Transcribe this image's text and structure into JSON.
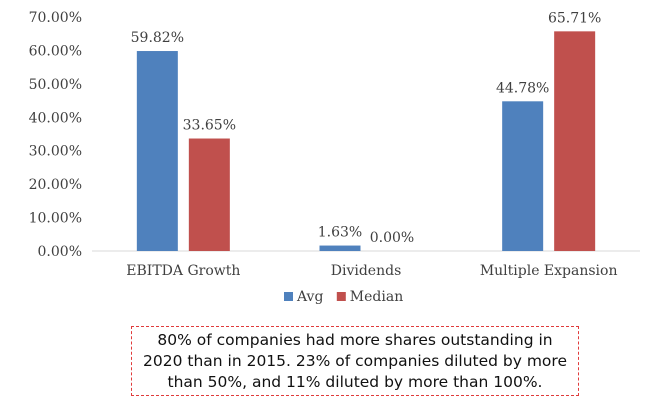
{
  "chart_data": {
    "type": "bar",
    "categories": [
      "EBITDA Growth",
      "Dividends",
      "Multiple Expansion"
    ],
    "series": [
      {
        "name": "Avg",
        "values": [
          59.82,
          1.63,
          44.78
        ],
        "labels": [
          "59.82%",
          "1.63%",
          "44.78%"
        ],
        "color": "#4f81bd"
      },
      {
        "name": "Median",
        "values": [
          33.65,
          0.0,
          65.71
        ],
        "labels": [
          "33.65%",
          "0.00%",
          "65.71%"
        ],
        "color": "#c0504d"
      }
    ],
    "ylim": [
      0,
      70
    ],
    "yticks": [
      "0.00%",
      "10.00%",
      "20.00%",
      "30.00%",
      "40.00%",
      "50.00%",
      "60.00%",
      "70.00%"
    ],
    "grid": false,
    "legend_position": "bottom"
  },
  "note": {
    "lines": [
      "80% of companies had more shares outstanding in",
      "2020 than in 2015.  23% of companies diluted by more",
      "than 50%, and 11% diluted by more than 100%."
    ]
  }
}
